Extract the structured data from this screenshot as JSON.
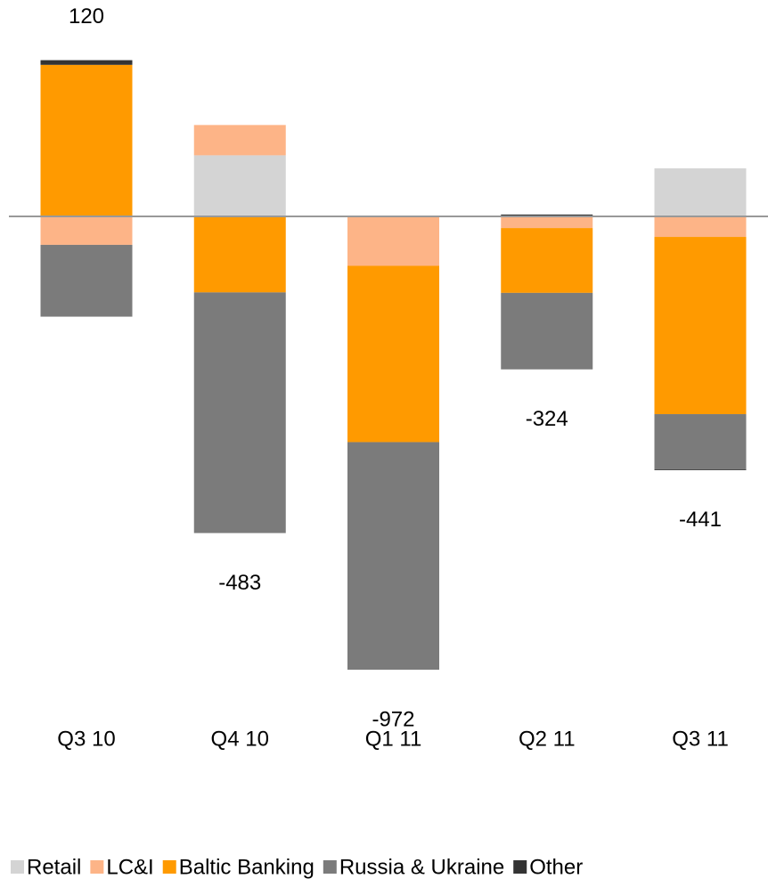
{
  "chart_data": {
    "type": "bar",
    "stacked": true,
    "categories": [
      "Q3 10",
      "Q4 10",
      "Q1 11",
      "Q2 11",
      "Q3 11"
    ],
    "series": [
      {
        "name": "Retail",
        "color": "#d4d4d4",
        "values": [
          0,
          131,
          0,
          0,
          103
        ]
      },
      {
        "name": "LC&I",
        "color": "#fdb487",
        "values": [
          -61,
          65,
          -106,
          -25,
          -44
        ]
      },
      {
        "name": "Baltic Banking",
        "color": "#ff9a00",
        "values": [
          325,
          -163,
          -378,
          -139,
          -380
        ]
      },
      {
        "name": "Russia & Ukraine",
        "color": "#7b7b7b",
        "values": [
          -154,
          -516,
          -488,
          -164,
          -118
        ]
      },
      {
        "name": "Other",
        "color": "#333333",
        "values": [
          10,
          0,
          0,
          4,
          -2
        ]
      }
    ],
    "totals": [
      120,
      -483,
      -972,
      -324,
      -441
    ]
  }
}
